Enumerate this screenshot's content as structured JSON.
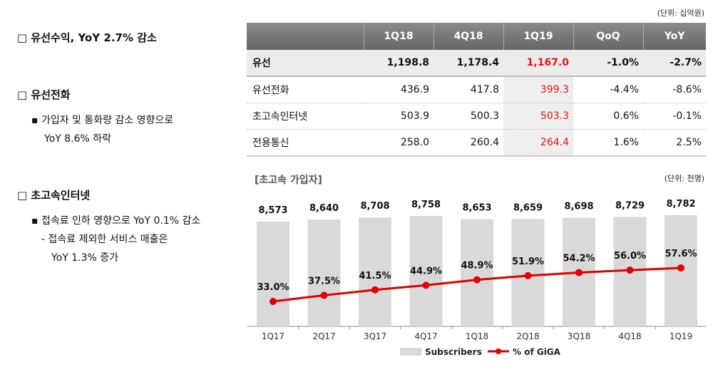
{
  "left": {
    "s1": "□ 유선수익, YoY 2.7% 감소",
    "s2": "□ 유선전화",
    "s2_b1_l1": "▪ 가입자 및 통화량 감소 영향으로",
    "s2_b1_l2": "YoY 8.6% 하락",
    "s3": "□ 초고속인터넷",
    "s3_b1": "▪ 접속료 인하 영향으로 YoY 0.1% 감소",
    "s3_b2_l1": "- 접속료 제외한 서비스 매출은",
    "s3_b2_l2": "YoY 1.3% 증가"
  },
  "table": {
    "unit": "(단위: 십억원)",
    "headers": [
      "",
      "1Q18",
      "4Q18",
      "1Q19",
      "QoQ",
      "YoY"
    ],
    "rows": [
      [
        "유선",
        "1,198.8",
        "1,178.4",
        "1,167.0",
        "-1.0%",
        "-2.7%"
      ],
      [
        "유선전화",
        "436.9",
        "417.8",
        "399.3",
        "-4.4%",
        "-8.6%"
      ],
      [
        "초고속인터넷",
        "503.9",
        "500.3",
        "503.3",
        "0.6%",
        "-0.1%"
      ],
      [
        "전용통신",
        "258.0",
        "260.4",
        "264.4",
        "1.6%",
        "2.5%"
      ]
    ],
    "highlight_color": "#e11111"
  },
  "chart_data": {
    "type": "bar+line",
    "title": "[초고속 가입자]",
    "unit": "(단위: 천명)",
    "categories": [
      "1Q17",
      "2Q17",
      "3Q17",
      "4Q17",
      "1Q18",
      "2Q18",
      "3Q18",
      "4Q18",
      "1Q19"
    ],
    "series": [
      {
        "name": "Subscribers",
        "type": "bar",
        "color": "#d9d9d9",
        "values": [
          8573,
          8640,
          8708,
          8758,
          8653,
          8659,
          8698,
          8729,
          8782
        ],
        "labels": [
          "8,573",
          "8,640",
          "8,708",
          "8,758",
          "8,653",
          "8,659",
          "8,698",
          "8,729",
          "8,782"
        ]
      },
      {
        "name": "% of GiGA",
        "type": "line",
        "color": "#e00000",
        "values": [
          33.0,
          37.5,
          41.5,
          44.9,
          48.9,
          51.9,
          54.2,
          56.0,
          57.6
        ],
        "labels": [
          "33.0%",
          "37.5%",
          "41.5%",
          "44.9%",
          "48.9%",
          "51.9%",
          "54.2%",
          "56.0%",
          "57.6%"
        ]
      }
    ],
    "legend": "bottom"
  }
}
